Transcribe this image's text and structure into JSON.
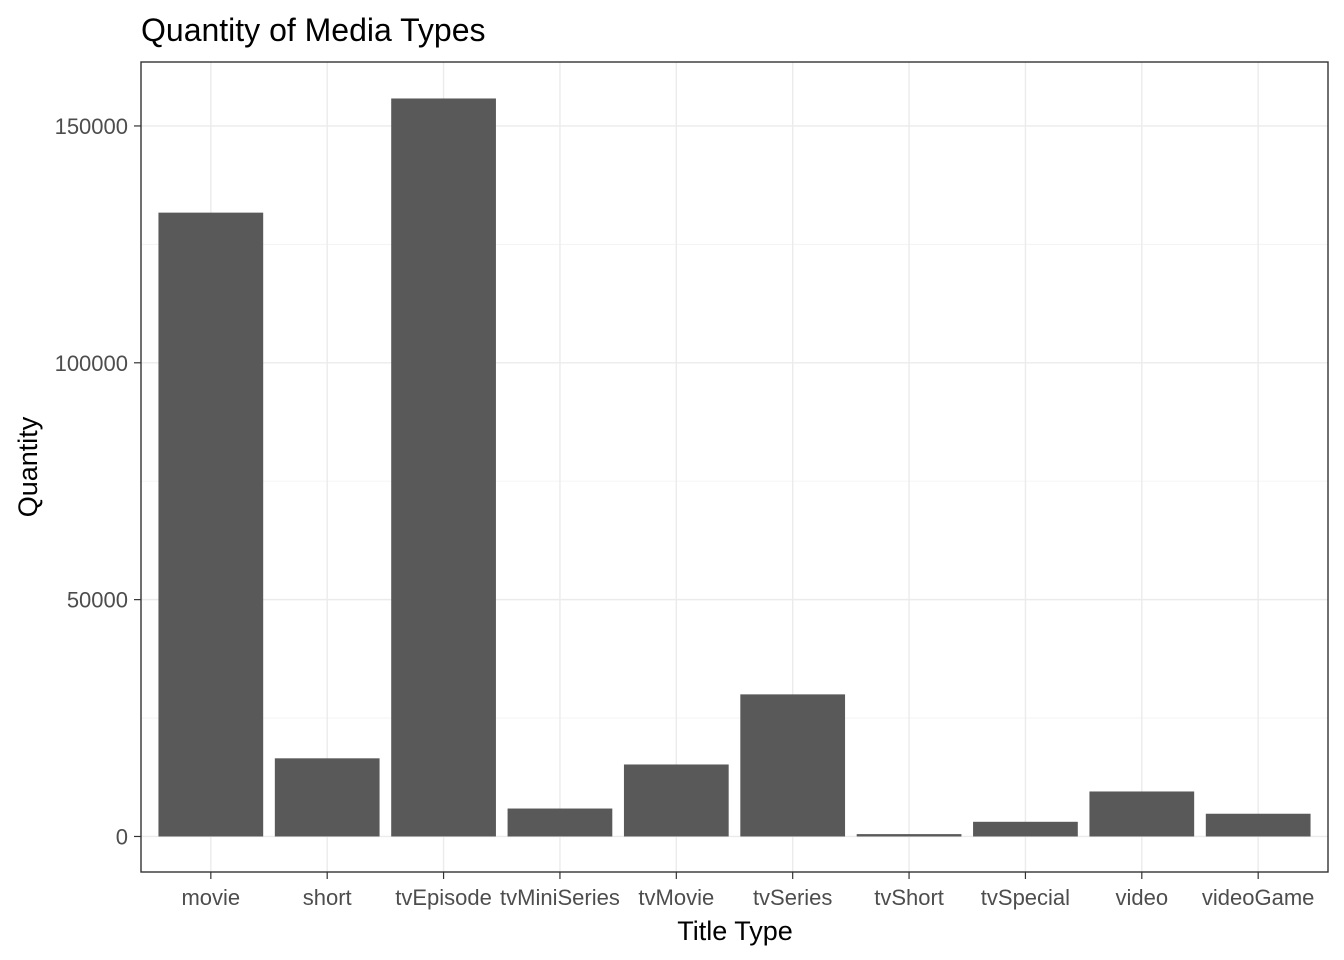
{
  "chart_data": {
    "type": "bar",
    "title": "Quantity of Media Types",
    "xlabel": "Title Type",
    "ylabel": "Quantity",
    "categories": [
      "movie",
      "short",
      "tvEpisode",
      "tvMiniSeries",
      "tvMovie",
      "tvSeries",
      "tvShort",
      "tvSpecial",
      "video",
      "videoGame"
    ],
    "values": [
      131700,
      16500,
      155800,
      5900,
      15200,
      30000,
      500,
      3100,
      9500,
      4800
    ],
    "ylim": [
      -7500,
      163500
    ],
    "yticks": [
      0,
      50000,
      100000,
      150000
    ],
    "ytick_labels": [
      "0",
      "50000",
      "100000",
      "150000"
    ],
    "grid": true,
    "bar_color": "#595959"
  }
}
